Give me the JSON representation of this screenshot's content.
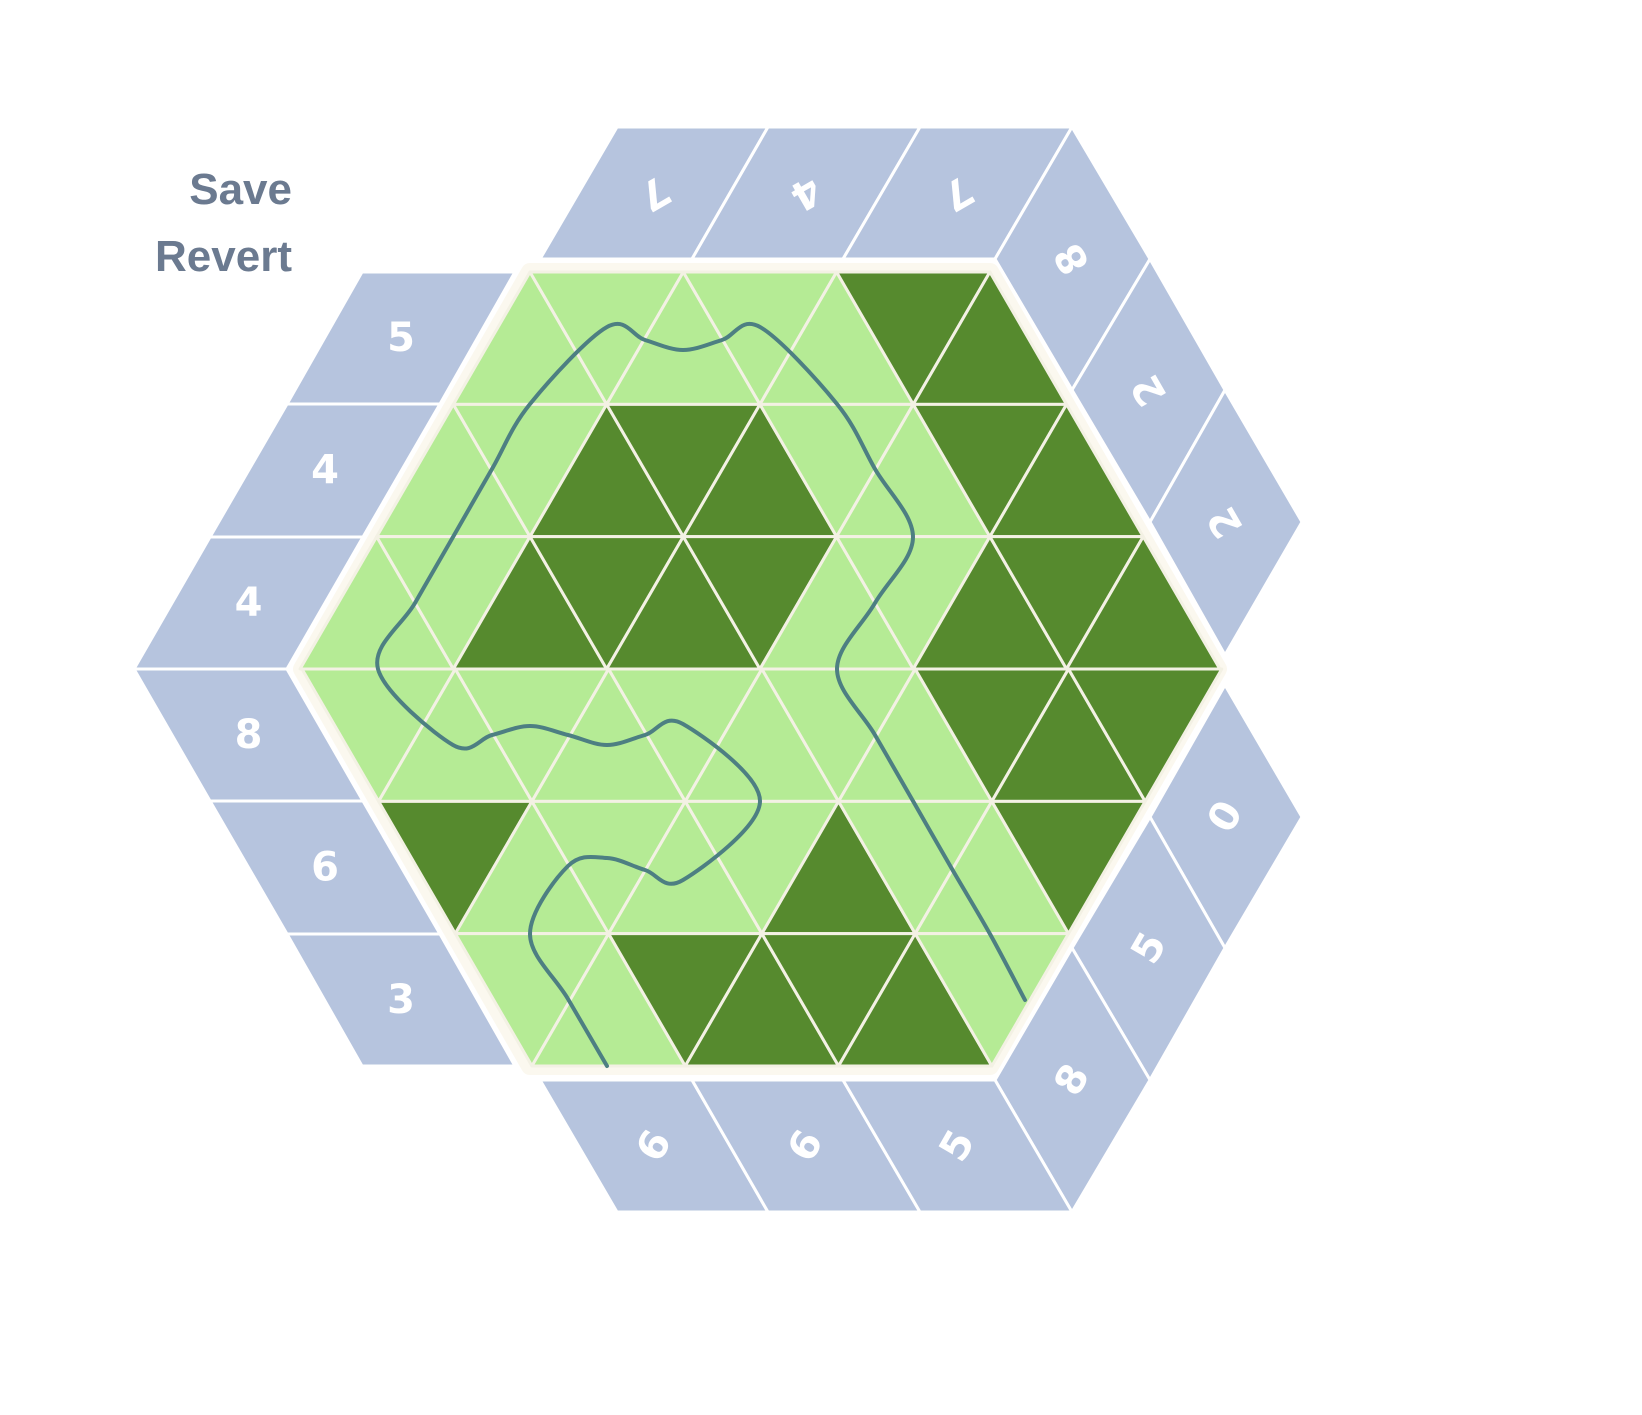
{
  "controls": {
    "save": "Save",
    "revert": "Revert"
  },
  "clues": {
    "top": [
      7,
      4,
      7
    ],
    "upper_right": [
      8,
      2,
      2
    ],
    "lower_right": [
      0,
      5,
      8
    ],
    "bottom": [
      6,
      6,
      5
    ],
    "left": [
      5,
      4,
      4,
      8,
      6,
      3
    ]
  }
}
